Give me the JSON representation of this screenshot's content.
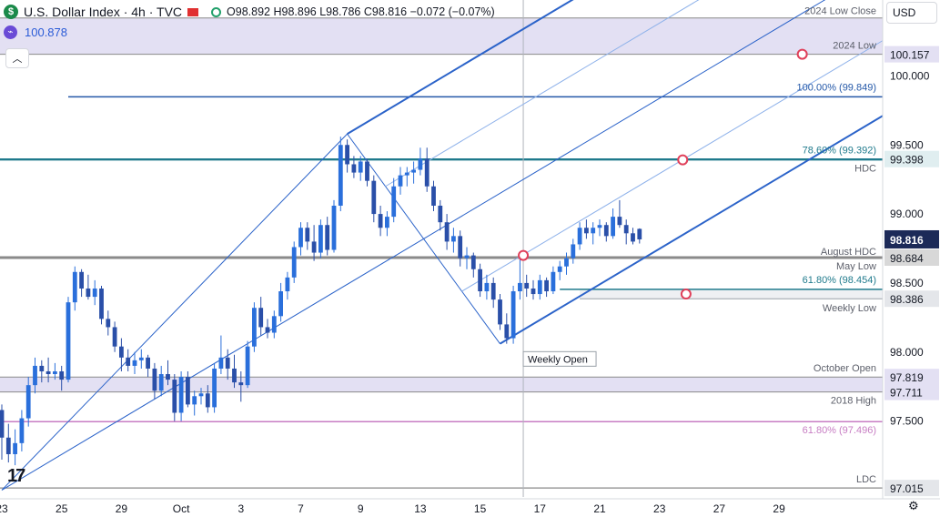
{
  "header": {
    "symbol": "U.S. Dollar Index · 4h · TVC",
    "logo": "$",
    "ohlc": "O98.892 H98.896 L98.786 C98.816 −0.072 (−0.07%)",
    "indicator_value": "100.878",
    "indicator_icon": "chart-icon",
    "collapse_icon": "chevron-up-icon",
    "currency": "USD",
    "currency_icon": "chevron-down-icon"
  },
  "colors": {
    "bull": "#2a6fdb",
    "bear": "#2a4fa8",
    "pitchfork": "#2b63c9",
    "pitchfork_light": "#8fb2ea",
    "zone_fill": "#e3e0f3",
    "gray_line": "#8a8a8a",
    "teal": "#1f7a8c",
    "navy": "#1c2a58",
    "pink": "#c77dc3",
    "marker": "#e0405a"
  },
  "chart_data": {
    "type": "candlestick",
    "title": "U.S. Dollar Index · 4h · TVC",
    "ylim": [
      96.95,
      100.55
    ],
    "y_ticks": [
      97.5,
      98.0,
      98.5,
      99.0,
      99.5,
      100.0
    ],
    "y_tick_labels": [
      "97.500",
      "98.000",
      "98.500",
      "99.000",
      "99.500",
      "100.000"
    ],
    "x_ticks": [
      {
        "i": 0,
        "label": "23"
      },
      {
        "i": 9,
        "label": "25"
      },
      {
        "i": 18,
        "label": "29"
      },
      {
        "i": 27,
        "label": "Oct"
      },
      {
        "i": 36,
        "label": "3"
      },
      {
        "i": 45,
        "label": "7"
      },
      {
        "i": 54,
        "label": "9"
      },
      {
        "i": 63,
        "label": "13"
      },
      {
        "i": 72,
        "label": "15"
      },
      {
        "i": 81,
        "label": "17"
      },
      {
        "i": 90,
        "label": "21"
      },
      {
        "i": 99,
        "label": "23"
      },
      {
        "i": 108,
        "label": "27"
      },
      {
        "i": 117,
        "label": "29"
      }
    ],
    "candle_count": 97,
    "last_price": 98.816,
    "candles": [
      [
        97.58,
        97.62,
        97.22,
        97.38
      ],
      [
        97.38,
        97.48,
        97.2,
        97.26
      ],
      [
        97.26,
        97.44,
        97.18,
        97.34
      ],
      [
        97.34,
        97.58,
        97.28,
        97.52
      ],
      [
        97.52,
        97.82,
        97.46,
        97.76
      ],
      [
        97.76,
        97.96,
        97.7,
        97.9
      ],
      [
        97.9,
        97.94,
        97.78,
        97.86
      ],
      [
        97.86,
        97.96,
        97.78,
        97.84
      ],
      [
        97.84,
        97.92,
        97.8,
        97.86
      ],
      [
        97.86,
        97.9,
        97.72,
        97.8
      ],
      [
        97.8,
        98.4,
        97.78,
        98.36
      ],
      [
        98.36,
        98.62,
        98.3,
        98.58
      ],
      [
        98.58,
        98.6,
        98.4,
        98.46
      ],
      [
        98.46,
        98.56,
        98.38,
        98.4
      ],
      [
        98.4,
        98.52,
        98.34,
        98.46
      ],
      [
        98.46,
        98.48,
        98.2,
        98.24
      ],
      [
        98.24,
        98.3,
        98.12,
        98.18
      ],
      [
        98.18,
        98.22,
        98.0,
        98.04
      ],
      [
        98.04,
        98.1,
        97.86,
        97.96
      ],
      [
        97.96,
        98.02,
        97.86,
        97.9
      ],
      [
        97.9,
        98.0,
        97.84,
        97.94
      ],
      [
        97.94,
        98.02,
        97.88,
        97.96
      ],
      [
        97.96,
        97.98,
        97.82,
        97.88
      ],
      [
        97.88,
        97.92,
        97.66,
        97.72
      ],
      [
        97.72,
        97.9,
        97.68,
        97.84
      ],
      [
        97.84,
        97.94,
        97.76,
        97.8
      ],
      [
        97.8,
        97.84,
        97.5,
        97.56
      ],
      [
        97.56,
        97.86,
        97.5,
        97.82
      ],
      [
        97.82,
        97.86,
        97.6,
        97.62
      ],
      [
        97.62,
        97.72,
        97.54,
        97.68
      ],
      [
        97.68,
        97.74,
        97.62,
        97.7
      ],
      [
        97.7,
        97.76,
        97.56,
        97.6
      ],
      [
        97.6,
        97.92,
        97.56,
        97.88
      ],
      [
        97.88,
        98.12,
        97.84,
        97.96
      ],
      [
        97.96,
        98.02,
        97.8,
        97.88
      ],
      [
        97.88,
        97.98,
        97.74,
        97.78
      ],
      [
        97.78,
        97.86,
        97.64,
        97.76
      ],
      [
        97.76,
        98.08,
        97.74,
        98.04
      ],
      [
        98.04,
        98.36,
        98.0,
        98.32
      ],
      [
        98.32,
        98.4,
        98.12,
        98.18
      ],
      [
        98.18,
        98.24,
        98.1,
        98.14
      ],
      [
        98.14,
        98.3,
        98.1,
        98.26
      ],
      [
        98.26,
        98.5,
        98.22,
        98.44
      ],
      [
        98.44,
        98.58,
        98.38,
        98.54
      ],
      [
        98.54,
        98.8,
        98.5,
        98.76
      ],
      [
        98.76,
        98.94,
        98.7,
        98.9
      ],
      [
        98.9,
        98.94,
        98.74,
        98.8
      ],
      [
        98.8,
        98.92,
        98.66,
        98.72
      ],
      [
        98.72,
        98.96,
        98.68,
        98.92
      ],
      [
        98.92,
        98.98,
        98.7,
        98.74
      ],
      [
        98.74,
        99.1,
        98.72,
        99.06
      ],
      [
        99.06,
        99.56,
        99.02,
        99.5
      ],
      [
        99.5,
        99.54,
        99.3,
        99.36
      ],
      [
        99.36,
        99.42,
        99.26,
        99.3
      ],
      [
        99.3,
        99.42,
        99.24,
        99.38
      ],
      [
        99.38,
        99.4,
        99.2,
        99.24
      ],
      [
        99.24,
        99.28,
        98.94,
        99.0
      ],
      [
        99.0,
        99.06,
        98.84,
        98.9
      ],
      [
        98.9,
        99.02,
        98.84,
        98.98
      ],
      [
        98.98,
        99.26,
        98.94,
        99.2
      ],
      [
        99.2,
        99.34,
        99.14,
        99.28
      ],
      [
        99.28,
        99.34,
        99.2,
        99.3
      ],
      [
        99.3,
        99.38,
        99.22,
        99.32
      ],
      [
        99.32,
        99.48,
        99.28,
        99.4
      ],
      [
        99.4,
        99.48,
        99.16,
        99.2
      ],
      [
        99.2,
        99.24,
        99.02,
        99.06
      ],
      [
        99.06,
        99.1,
        98.88,
        98.94
      ],
      [
        98.94,
        99.0,
        98.74,
        98.8
      ],
      [
        98.8,
        98.9,
        98.72,
        98.84
      ],
      [
        98.84,
        98.88,
        98.62,
        98.68
      ],
      [
        98.68,
        98.76,
        98.6,
        98.7
      ],
      [
        98.7,
        98.72,
        98.54,
        98.6
      ],
      [
        98.6,
        98.64,
        98.4,
        98.44
      ],
      [
        98.44,
        98.56,
        98.38,
        98.5
      ],
      [
        98.5,
        98.54,
        98.32,
        98.38
      ],
      [
        98.38,
        98.42,
        98.16,
        98.2
      ],
      [
        98.2,
        98.28,
        98.06,
        98.1
      ],
      [
        98.1,
        98.48,
        98.06,
        98.44
      ],
      [
        98.44,
        98.68,
        98.38,
        98.5
      ],
      [
        98.5,
        98.56,
        98.4,
        98.46
      ],
      [
        98.46,
        98.52,
        98.38,
        98.42
      ],
      [
        98.42,
        98.56,
        98.38,
        98.52
      ],
      [
        98.52,
        98.54,
        98.4,
        98.44
      ],
      [
        98.44,
        98.62,
        98.42,
        98.58
      ],
      [
        98.58,
        98.66,
        98.52,
        98.62
      ],
      [
        98.62,
        98.72,
        98.56,
        98.68
      ],
      [
        98.68,
        98.82,
        98.64,
        98.78
      ],
      [
        98.78,
        98.94,
        98.74,
        98.9
      ],
      [
        98.9,
        98.96,
        98.82,
        98.86
      ],
      [
        98.86,
        98.94,
        98.78,
        98.9
      ],
      [
        98.9,
        98.96,
        98.84,
        98.92
      ],
      [
        98.92,
        98.94,
        98.8,
        98.84
      ],
      [
        98.84,
        99.04,
        98.82,
        98.98
      ],
      [
        98.98,
        99.1,
        98.9,
        98.92
      ],
      [
        98.92,
        98.96,
        98.78,
        98.86
      ],
      [
        98.86,
        98.9,
        98.78,
        98.8
      ],
      [
        98.892,
        98.896,
        98.786,
        98.816
      ]
    ],
    "levels": [
      {
        "name": "2024 Low Close",
        "value": 100.42,
        "label": "2024 Low Close",
        "style": "zone-top"
      },
      {
        "name": "2024 Low",
        "value": 100.157,
        "label": "2024 Low",
        "badge": "100.157",
        "style": "zone-bottom"
      },
      {
        "name": "100% extension",
        "value": 99.849,
        "label": "100.00% (99.849)",
        "style": "blue"
      },
      {
        "name": "78.6% retracement",
        "value": 99.392,
        "label": "78.60% (99.392)",
        "style": "teal"
      },
      {
        "name": "HDC",
        "value": 99.398,
        "label": "HDC",
        "badge": "99.398",
        "style": "teal"
      },
      {
        "name": "August HDC",
        "value": 98.684,
        "label": "August HDC",
        "badge": "98.684",
        "style": "gray"
      },
      {
        "name": "May Low",
        "value": 98.684,
        "label": "May Low",
        "style": "gray"
      },
      {
        "name": "61.8% retracement",
        "value": 98.454,
        "label": "61.80% (98.454)",
        "style": "teal-short"
      },
      {
        "name": "Weekly Low",
        "value": 98.386,
        "label": "Weekly Low",
        "badge": "98.386",
        "style": "zone-short"
      },
      {
        "name": "October Open",
        "value": 97.819,
        "label": "October Open",
        "badge": "97.819",
        "style": "zone-top"
      },
      {
        "name": "2018 High",
        "value": 97.711,
        "label": "2018 High",
        "badge": "97.711",
        "style": "zone-bottom"
      },
      {
        "name": "61.8% extension",
        "value": 97.496,
        "label": "61.80% (97.496)",
        "style": "pink"
      },
      {
        "name": "LDC",
        "value": 97.015,
        "label": "LDC",
        "badge": "97.015",
        "style": "gray"
      }
    ],
    "pitchfork": {
      "pivot": {
        "i": 0,
        "value": 97.0
      },
      "high": {
        "i": 52,
        "value": 99.58
      },
      "low": {
        "i": 75,
        "value": 98.06
      }
    },
    "markers": [
      {
        "i": 120.5,
        "value": 100.157
      },
      {
        "i": 102.5,
        "value": 99.392
      },
      {
        "i": 78.5,
        "value": 98.7
      },
      {
        "i": 103,
        "value": 98.42
      }
    ],
    "annotations": [
      {
        "name": "weekly-open",
        "text": "Weekly Open",
        "i": 78.5,
        "value": 97.95
      }
    ],
    "vertical_marker_i": 78.5
  }
}
